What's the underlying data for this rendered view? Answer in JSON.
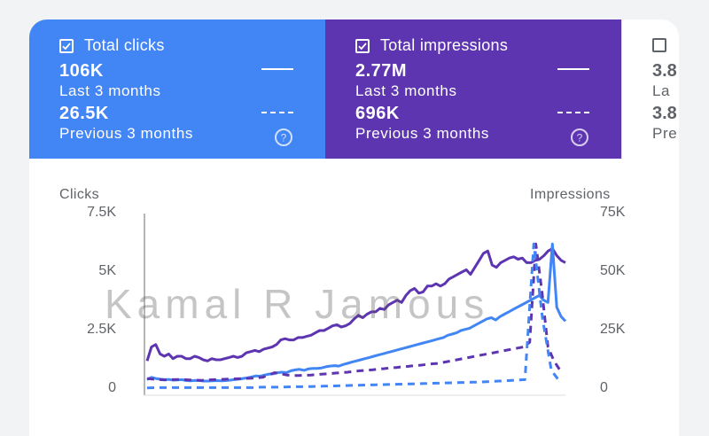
{
  "cards": {
    "clicks": {
      "title": "Total clicks",
      "value_current": "106K",
      "label_current": "Last 3 months",
      "value_previous": "26.5K",
      "label_previous": "Previous 3 months",
      "checked": true,
      "color": "#4285f4"
    },
    "impressions": {
      "title": "Total impressions",
      "value_current": "2.77M",
      "label_current": "Last 3 months",
      "value_previous": "696K",
      "label_previous": "Previous 3 months",
      "checked": true,
      "color": "#5e35b1"
    },
    "ctr": {
      "value_current": "3.8",
      "label_current": "La",
      "value_previous": "3.8",
      "label_previous": "Pre",
      "checked": false
    }
  },
  "help_icon": "help-circle-icon",
  "watermark": "Kamal R Jamous",
  "chart_data": {
    "type": "line",
    "left_axis": {
      "title": "Clicks",
      "ticks": [
        "7.5K",
        "5K",
        "2.5K",
        "0"
      ],
      "range": [
        0,
        7500
      ]
    },
    "right_axis": {
      "title": "Impressions",
      "ticks": [
        "75K",
        "50K",
        "25K",
        "0"
      ],
      "range": [
        0,
        75000
      ]
    },
    "series": [
      {
        "axis": "right",
        "style": "solid",
        "color": "#5e35b1",
        "values": [
          12000,
          18000,
          19000,
          15000,
          14000,
          15000,
          13000,
          14000,
          14000,
          13000,
          13000,
          14000,
          13500,
          12500,
          12000,
          13000,
          12500,
          12500,
          13000,
          13500,
          14000,
          13500,
          14000,
          15500,
          16000,
          16500,
          16000,
          17000,
          17500,
          18000,
          19000,
          21000,
          21500,
          21000,
          21000,
          22000,
          22000,
          22500,
          23000,
          24000,
          25000,
          25000,
          26000,
          27000,
          27500,
          26500,
          27000,
          28000,
          30000,
          31500,
          30500,
          32000,
          33000,
          33000,
          34500,
          34000,
          36000,
          37000,
          38000,
          37000,
          40000,
          42000,
          43000,
          41000,
          41500,
          44000,
          44000,
          45000,
          44000,
          45000,
          47000,
          48000,
          49000,
          50000,
          51000,
          49000,
          52000,
          55000,
          58000,
          59000,
          53000,
          52000,
          54000,
          55000,
          56000,
          56500,
          55500,
          56000,
          54000,
          54000,
          55000,
          55500,
          57000,
          59000,
          60000,
          57000,
          55000,
          54000
        ]
      },
      {
        "axis": "left",
        "style": "solid",
        "color": "#4285f4",
        "values": [
          400,
          500,
          450,
          420,
          400,
          410,
          380,
          390,
          400,
          360,
          350,
          370,
          360,
          340,
          340,
          350,
          360,
          350,
          360,
          380,
          400,
          420,
          450,
          480,
          520,
          560,
          550,
          600,
          640,
          650,
          700,
          720,
          700,
          780,
          820,
          840,
          800,
          860,
          880,
          880,
          900,
          950,
          980,
          1000,
          980,
          1050,
          1100,
          1150,
          1200,
          1250,
          1300,
          1350,
          1400,
          1450,
          1500,
          1550,
          1600,
          1650,
          1700,
          1750,
          1800,
          1850,
          1900,
          1950,
          2000,
          2050,
          2100,
          2150,
          2200,
          2300,
          2350,
          2400,
          2500,
          2550,
          2600,
          2700,
          2800,
          2900,
          3000,
          3050,
          2950,
          3100,
          3200,
          3300,
          3400,
          3500,
          3600,
          3700,
          3800,
          3900,
          4000,
          3800,
          3700,
          6200,
          3500,
          3100,
          2900
        ]
      },
      {
        "axis": "right",
        "style": "dashed",
        "color": "#5e35b1",
        "values": [
          4500,
          4200,
          4000,
          3900,
          4000,
          4100,
          4000,
          3900,
          3800,
          3700,
          3900,
          4000,
          4100,
          4200,
          4300,
          4400,
          4500,
          4600,
          4800,
          5000,
          6000,
          7000,
          6500,
          6000,
          5800,
          5800,
          5900,
          6000,
          6200,
          6400,
          6600,
          6800,
          7000,
          7200,
          7500,
          7800,
          8000,
          8200,
          8500,
          8700,
          9000,
          9200,
          9500,
          9700,
          10000,
          10200,
          10500,
          10800,
          11000,
          11500,
          12000,
          12500,
          13000,
          13500,
          14000,
          14500,
          15000,
          15500,
          16000,
          16500,
          17000,
          17500,
          18000,
          20000,
          62000,
          42000,
          18000,
          12000,
          8000
        ]
      },
      {
        "axis": "left",
        "style": "dashed",
        "color": "#4285f4",
        "values": [
          50,
          60,
          60,
          60,
          60,
          60,
          60,
          60,
          60,
          60,
          60,
          60,
          60,
          80,
          80,
          80,
          90,
          100,
          100,
          110,
          120,
          130,
          140,
          150,
          160,
          170,
          180,
          190,
          200,
          210,
          220,
          230,
          240,
          250,
          260,
          270,
          280,
          290,
          300,
          320,
          340,
          360,
          380,
          400,
          6200,
          3000,
          800,
          300
        ]
      }
    ]
  }
}
